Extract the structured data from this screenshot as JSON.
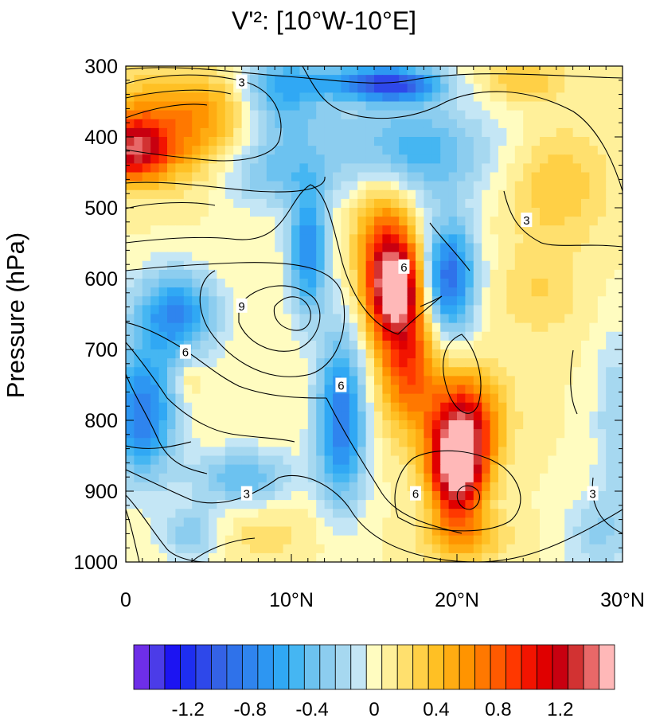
{
  "chart_data": {
    "type": "heatmap",
    "title": "V'²: [10°W-10°E]",
    "ylabel": "Pressure (hPa)",
    "xlabel": "",
    "x_ticks": [
      "0",
      "10°N",
      "20°N",
      "30°N"
    ],
    "x_tick_values": [
      0,
      10,
      20,
      30
    ],
    "xlim": [
      0,
      30
    ],
    "y_ticks": [
      "300",
      "400",
      "500",
      "600",
      "700",
      "800",
      "900",
      "1000"
    ],
    "y_tick_values": [
      300,
      400,
      500,
      600,
      700,
      800,
      900,
      1000
    ],
    "ylim": [
      300,
      1000
    ],
    "y_reversed": true,
    "shading": {
      "description_values": "V' squared anomaly, filled contours",
      "levels": [
        -1.5,
        -1.4,
        -1.3,
        -1.2,
        -1.1,
        -1.0,
        -0.9,
        -0.8,
        -0.7,
        -0.6,
        -0.5,
        -0.4,
        -0.3,
        -0.2,
        -0.1,
        0,
        0.1,
        0.2,
        0.3,
        0.4,
        0.5,
        0.6,
        0.7,
        0.8,
        0.9,
        1.0,
        1.1,
        1.2,
        1.3,
        1.4,
        1.5
      ],
      "colors": [
        "#6e2ee8",
        "#4b3ce8",
        "#1c14f2",
        "#1e2ef0",
        "#2e48ea",
        "#3462e6",
        "#2f72ea",
        "#2f84ee",
        "#2d96f2",
        "#30a8f4",
        "#45b6f2",
        "#6cc2f0",
        "#8ccdef",
        "#a6d8f0",
        "#c4e6f5",
        "#fffcc0",
        "#fff09a",
        "#ffe06e",
        "#ffd046",
        "#ffc024",
        "#ffac12",
        "#ff9400",
        "#ff7800",
        "#ff5a00",
        "#ff3800",
        "#f21400",
        "#e00000",
        "#c80010",
        "#d23232",
        "#e86868",
        "#ffb8b8"
      ],
      "colorbar_labels": [
        "-1.2",
        "-0.8",
        "-0.4",
        "0",
        "0.4",
        "0.8",
        "1.2"
      ],
      "colorbar_label_values": [
        -1.2,
        -0.8,
        -0.4,
        0,
        0.4,
        0.8,
        1.2
      ],
      "blobs": [
        {
          "lat": 2.0,
          "p": 390,
          "rx": 5.0,
          "ry": 70,
          "value": 0.6
        },
        {
          "lat": 0.5,
          "p": 420,
          "rx": 2.0,
          "ry": 40,
          "value": 0.9
        },
        {
          "lat": 6.0,
          "p": 350,
          "rx": 3.0,
          "ry": 50,
          "value": 0.3
        },
        {
          "lat": 16.0,
          "p": 325,
          "rx": 3.0,
          "ry": 25,
          "value": -1.1
        },
        {
          "lat": 11.0,
          "p": 320,
          "rx": 4.0,
          "ry": 25,
          "value": -0.3
        },
        {
          "lat": 16.2,
          "p": 610,
          "rx": 1.6,
          "ry": 70,
          "value": 1.5
        },
        {
          "lat": 15.5,
          "p": 520,
          "rx": 1.8,
          "ry": 90,
          "value": 0.5
        },
        {
          "lat": 17.0,
          "p": 720,
          "rx": 1.8,
          "ry": 90,
          "value": 0.8
        },
        {
          "lat": 20.0,
          "p": 870,
          "rx": 1.6,
          "ry": 70,
          "value": 1.5
        },
        {
          "lat": 20.5,
          "p": 800,
          "rx": 2.2,
          "ry": 70,
          "value": 0.9
        },
        {
          "lat": 20.5,
          "p": 965,
          "rx": 2.5,
          "ry": 35,
          "value": 0.4
        },
        {
          "lat": 19.5,
          "p": 600,
          "rx": 1.6,
          "ry": 80,
          "value": -1.0
        },
        {
          "lat": 11.0,
          "p": 560,
          "rx": 1.2,
          "ry": 90,
          "value": -0.8
        },
        {
          "lat": 13.0,
          "p": 800,
          "rx": 1.5,
          "ry": 120,
          "value": -0.9
        },
        {
          "lat": 3.0,
          "p": 650,
          "rx": 2.5,
          "ry": 60,
          "value": -0.8
        },
        {
          "lat": 1.0,
          "p": 790,
          "rx": 2.0,
          "ry": 90,
          "value": -0.9
        },
        {
          "lat": 7.0,
          "p": 880,
          "rx": 3.0,
          "ry": 40,
          "value": -0.5
        },
        {
          "lat": 4.0,
          "p": 960,
          "rx": 2.0,
          "ry": 40,
          "value": -0.4
        },
        {
          "lat": 9.0,
          "p": 350,
          "rx": 3.0,
          "ry": 60,
          "value": -0.6
        },
        {
          "lat": 17.0,
          "p": 420,
          "rx": 5.0,
          "ry": 70,
          "value": -0.6
        },
        {
          "lat": 26.0,
          "p": 470,
          "rx": 3.0,
          "ry": 80,
          "value": 0.3
        },
        {
          "lat": 25.0,
          "p": 620,
          "rx": 2.5,
          "ry": 60,
          "value": 0.2
        },
        {
          "lat": 24.0,
          "p": 320,
          "rx": 2.5,
          "ry": 30,
          "value": 0.3
        },
        {
          "lat": 28.5,
          "p": 960,
          "rx": 2.0,
          "ry": 60,
          "value": -0.3
        },
        {
          "lat": 29.5,
          "p": 800,
          "rx": 1.2,
          "ry": 120,
          "value": -0.3
        },
        {
          "lat": 8.0,
          "p": 960,
          "rx": 4.0,
          "ry": 40,
          "value": 0.15
        },
        {
          "lat": 3.8,
          "p": 745,
          "rx": 0.6,
          "ry": 20,
          "value": 0.2
        },
        {
          "lat": 8.5,
          "p": 450,
          "rx": 3.0,
          "ry": 50,
          "value": -0.4
        }
      ]
    },
    "contours": {
      "color": "#000000",
      "line_labels": [
        {
          "text": "3",
          "lat": 7,
          "p": 322
        },
        {
          "text": "3",
          "lat": 24.2,
          "p": 517
        },
        {
          "text": "3",
          "lat": 7.3,
          "p": 903
        },
        {
          "text": "3",
          "lat": 28.2,
          "p": 903
        },
        {
          "text": "6",
          "lat": 16.8,
          "p": 583
        },
        {
          "text": "6",
          "lat": 3.6,
          "p": 703
        },
        {
          "text": "6",
          "lat": 13.0,
          "p": 750
        },
        {
          "text": "6",
          "lat": 17.5,
          "p": 903
        },
        {
          "text": "9",
          "lat": 7.0,
          "p": 638
        }
      ]
    }
  }
}
